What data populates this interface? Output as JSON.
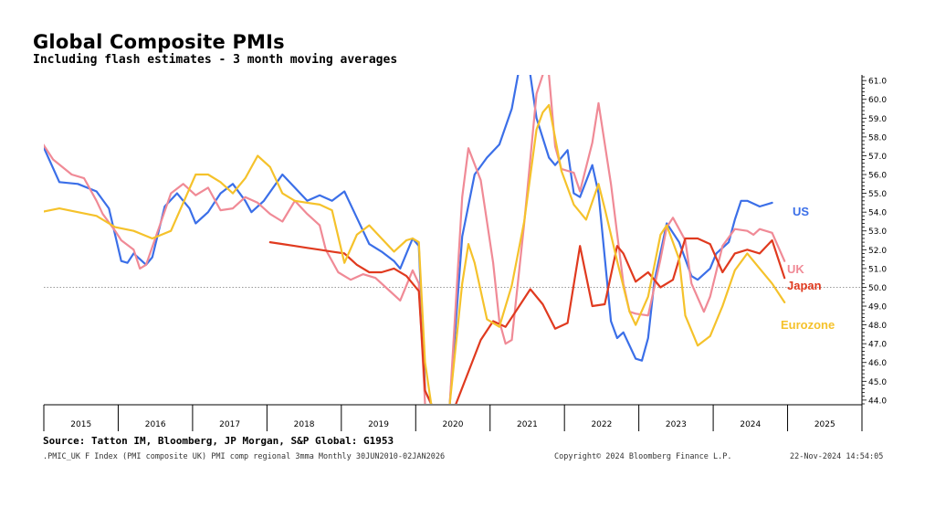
{
  "header": {
    "title": "Global Composite PMIs",
    "subtitle": "Including flash estimates - 3 month moving averages"
  },
  "footer": {
    "source": "Source: Tatton IM, Bloomberg, JP Morgan, S&P Global: G1953",
    "index_info": ".PMIC_UK F Index (PMI composite UK) PMI comp regional 3mma  Monthly 30JUN2010-02JAN2026",
    "copyright": "Copyright© 2024 Bloomberg Finance L.P.",
    "timestamp": "22-Nov-2024 14:54:05"
  },
  "chart_data": {
    "type": "line",
    "title": "Global Composite PMIs",
    "subtitle": "Including flash estimates - 3 month moving averages",
    "x_tick_labels": [
      "2015",
      "2016",
      "2017",
      "2018",
      "2019",
      "2020",
      "2021",
      "2022",
      "2023",
      "2024",
      "2025"
    ],
    "xlim": [
      "2015-01",
      "2025-12"
    ],
    "y_tick_labels": [
      "61.0",
      "60.0",
      "59.0",
      "58.0",
      "57.0",
      "56.0",
      "55.0",
      "54.0",
      "53.0",
      "52.0",
      "51.0",
      "50.0",
      "49.0",
      "48.0",
      "47.0",
      "46.0",
      "45.0",
      "44.0"
    ],
    "ylim": [
      43.8,
      61.3
    ],
    "reference_line": 50,
    "grid": "vertical year dividers only",
    "y_axis_position": "right",
    "series": [
      {
        "name": "US",
        "color": "#3b6fe8",
        "points": [
          [
            "2014-12",
            57.8
          ],
          [
            "2015-03",
            55.6
          ],
          [
            "2015-06",
            55.5
          ],
          [
            "2015-09",
            55.1
          ],
          [
            "2015-11",
            54.2
          ],
          [
            "2016-01",
            51.4
          ],
          [
            "2016-02",
            51.3
          ],
          [
            "2016-03",
            51.8
          ],
          [
            "2016-05",
            51.2
          ],
          [
            "2016-06",
            51.6
          ],
          [
            "2016-08",
            54.3
          ],
          [
            "2016-10",
            55.0
          ],
          [
            "2016-12",
            54.2
          ],
          [
            "2017-01",
            53.4
          ],
          [
            "2017-03",
            54.0
          ],
          [
            "2017-05",
            55.0
          ],
          [
            "2017-07",
            55.5
          ],
          [
            "2017-09",
            54.6
          ],
          [
            "2017-10",
            54.0
          ],
          [
            "2017-12",
            54.6
          ],
          [
            "2018-03",
            56.0
          ],
          [
            "2018-05",
            55.3
          ],
          [
            "2018-07",
            54.6
          ],
          [
            "2018-09",
            54.9
          ],
          [
            "2018-11",
            54.6
          ],
          [
            "2019-01",
            55.1
          ],
          [
            "2019-03",
            53.7
          ],
          [
            "2019-05",
            52.3
          ],
          [
            "2019-07",
            51.9
          ],
          [
            "2019-09",
            51.4
          ],
          [
            "2019-10",
            51.0
          ],
          [
            "2019-12",
            52.6
          ],
          [
            "2020-01",
            52.2
          ],
          [
            "2020-02",
            44.5
          ],
          [
            "2020-03",
            43.8
          ]
        ],
        "points_2": [
          [
            "2020-06",
            43.8
          ],
          [
            "2020-08",
            52.7
          ],
          [
            "2020-10",
            56.0
          ],
          [
            "2020-12",
            56.9
          ],
          [
            "2021-02",
            57.6
          ],
          [
            "2021-04",
            59.5
          ],
          [
            "2021-05",
            61.3
          ]
        ],
        "points_3": [
          [
            "2021-07",
            61.3
          ],
          [
            "2021-08",
            59.0
          ],
          [
            "2021-10",
            56.9
          ],
          [
            "2021-11",
            56.5
          ],
          [
            "2022-01",
            57.3
          ],
          [
            "2022-02",
            55.0
          ],
          [
            "2022-03",
            54.8
          ],
          [
            "2022-05",
            56.5
          ],
          [
            "2022-06",
            55.0
          ],
          [
            "2022-08",
            48.2
          ],
          [
            "2022-09",
            47.3
          ],
          [
            "2022-10",
            47.6
          ],
          [
            "2022-12",
            46.2
          ],
          [
            "2023-01",
            46.1
          ],
          [
            "2023-02",
            47.3
          ],
          [
            "2023-03",
            50.3
          ],
          [
            "2023-05",
            53.4
          ],
          [
            "2023-07",
            52.4
          ],
          [
            "2023-09",
            50.6
          ],
          [
            "2023-10",
            50.4
          ],
          [
            "2023-12",
            51.0
          ],
          [
            "2024-01",
            51.8
          ],
          [
            "2024-03",
            52.4
          ],
          [
            "2024-04",
            53.6
          ],
          [
            "2024-05",
            54.6
          ],
          [
            "2024-06",
            54.6
          ],
          [
            "2024-08",
            54.3
          ],
          [
            "2024-10",
            54.5
          ]
        ]
      },
      {
        "name": "UK",
        "color": "#f08a96",
        "points": [
          [
            "2014-12",
            57.8
          ],
          [
            "2015-02",
            56.8
          ],
          [
            "2015-05",
            56.0
          ],
          [
            "2015-07",
            55.8
          ],
          [
            "2015-09",
            54.6
          ],
          [
            "2015-10",
            53.9
          ],
          [
            "2015-12",
            53.0
          ],
          [
            "2016-01",
            52.5
          ],
          [
            "2016-03",
            52.0
          ],
          [
            "2016-04",
            51.0
          ],
          [
            "2016-05",
            51.2
          ],
          [
            "2016-07",
            53.1
          ],
          [
            "2016-09",
            55.0
          ],
          [
            "2016-11",
            55.5
          ],
          [
            "2017-01",
            54.9
          ],
          [
            "2017-03",
            55.3
          ],
          [
            "2017-05",
            54.1
          ],
          [
            "2017-07",
            54.2
          ],
          [
            "2017-09",
            54.8
          ],
          [
            "2017-11",
            54.5
          ],
          [
            "2018-01",
            53.9
          ],
          [
            "2018-03",
            53.5
          ],
          [
            "2018-05",
            54.6
          ],
          [
            "2018-07",
            53.9
          ],
          [
            "2018-09",
            53.3
          ],
          [
            "2018-10",
            52.0
          ],
          [
            "2018-12",
            50.8
          ],
          [
            "2019-02",
            50.4
          ],
          [
            "2019-04",
            50.7
          ],
          [
            "2019-06",
            50.5
          ],
          [
            "2019-08",
            49.9
          ],
          [
            "2019-10",
            49.3
          ],
          [
            "2019-12",
            50.9
          ],
          [
            "2020-01",
            50.2
          ],
          [
            "2020-02",
            43.8
          ]
        ],
        "points_2": [
          [
            "2020-06",
            43.8
          ],
          [
            "2020-08",
            54.8
          ],
          [
            "2020-09",
            57.4
          ],
          [
            "2020-11",
            55.7
          ],
          [
            "2021-01",
            51.3
          ],
          [
            "2021-02",
            48.2
          ],
          [
            "2021-03",
            47.0
          ],
          [
            "2021-04",
            47.2
          ],
          [
            "2021-06",
            53.4
          ],
          [
            "2021-08",
            60.3
          ],
          [
            "2021-09",
            61.3
          ]
        ],
        "points_3": [
          [
            "2021-10",
            61.3
          ],
          [
            "2021-11",
            57.5
          ],
          [
            "2021-12",
            56.3
          ],
          [
            "2022-02",
            56.1
          ],
          [
            "2022-03",
            55.1
          ],
          [
            "2022-05",
            57.7
          ],
          [
            "2022-06",
            59.8
          ],
          [
            "2022-08",
            55.5
          ],
          [
            "2022-10",
            50.2
          ],
          [
            "2022-11",
            48.7
          ],
          [
            "2022-12",
            48.6
          ],
          [
            "2023-02",
            48.5
          ],
          [
            "2023-04",
            51.5
          ],
          [
            "2023-05",
            53.2
          ],
          [
            "2023-06",
            53.7
          ],
          [
            "2023-08",
            52.5
          ],
          [
            "2023-09",
            50.2
          ],
          [
            "2023-11",
            48.7
          ],
          [
            "2023-12",
            49.5
          ],
          [
            "2024-02",
            52.2
          ],
          [
            "2024-04",
            53.1
          ],
          [
            "2024-06",
            53.0
          ],
          [
            "2024-07",
            52.8
          ],
          [
            "2024-08",
            53.1
          ],
          [
            "2024-10",
            52.9
          ],
          [
            "2024-12",
            51.4
          ]
        ]
      },
      {
        "name": "Japan",
        "color": "#e03a1f",
        "points": [
          [
            "2018-01",
            52.4
          ],
          [
            "2018-03",
            52.3
          ],
          [
            "2018-05",
            52.2
          ],
          [
            "2018-07",
            52.1
          ],
          [
            "2018-09",
            52.0
          ],
          [
            "2018-11",
            51.9
          ],
          [
            "2019-01",
            51.8
          ],
          [
            "2019-03",
            51.2
          ],
          [
            "2019-05",
            50.8
          ],
          [
            "2019-07",
            50.8
          ],
          [
            "2019-09",
            51.0
          ],
          [
            "2019-11",
            50.6
          ],
          [
            "2020-01",
            49.8
          ],
          [
            "2020-02",
            44.5
          ],
          [
            "2020-03",
            43.8
          ]
        ],
        "points_2": [
          [
            "2020-07",
            43.8
          ],
          [
            "2020-09",
            45.5
          ],
          [
            "2020-11",
            47.2
          ],
          [
            "2021-01",
            48.2
          ],
          [
            "2021-03",
            47.9
          ],
          [
            "2021-05",
            48.9
          ],
          [
            "2021-07",
            49.9
          ],
          [
            "2021-09",
            49.1
          ],
          [
            "2021-11",
            47.8
          ],
          [
            "2022-01",
            48.1
          ],
          [
            "2022-03",
            52.2
          ],
          [
            "2022-05",
            49.0
          ],
          [
            "2022-07",
            49.1
          ],
          [
            "2022-09",
            52.2
          ],
          [
            "2022-10",
            51.8
          ],
          [
            "2022-12",
            50.3
          ],
          [
            "2023-02",
            50.8
          ],
          [
            "2023-04",
            50.0
          ],
          [
            "2023-06",
            50.4
          ],
          [
            "2023-08",
            52.6
          ],
          [
            "2023-10",
            52.6
          ],
          [
            "2023-12",
            52.3
          ],
          [
            "2024-02",
            50.8
          ],
          [
            "2024-04",
            51.8
          ],
          [
            "2024-06",
            52.0
          ],
          [
            "2024-08",
            51.8
          ],
          [
            "2024-10",
            52.5
          ],
          [
            "2024-12",
            50.5
          ]
        ]
      },
      {
        "name": "Eurozone",
        "color": "#f5c22b",
        "points": [
          [
            "2014-12",
            54.0
          ],
          [
            "2015-03",
            54.2
          ],
          [
            "2015-06",
            54.0
          ],
          [
            "2015-09",
            53.8
          ],
          [
            "2015-12",
            53.2
          ],
          [
            "2016-03",
            53.0
          ],
          [
            "2016-06",
            52.6
          ],
          [
            "2016-09",
            53.0
          ],
          [
            "2016-11",
            54.5
          ],
          [
            "2017-01",
            56.0
          ],
          [
            "2017-03",
            56.0
          ],
          [
            "2017-05",
            55.6
          ],
          [
            "2017-07",
            55.0
          ],
          [
            "2017-09",
            55.8
          ],
          [
            "2017-11",
            57.0
          ],
          [
            "2018-01",
            56.4
          ],
          [
            "2018-03",
            55.0
          ],
          [
            "2018-05",
            54.6
          ],
          [
            "2018-07",
            54.5
          ],
          [
            "2018-09",
            54.4
          ],
          [
            "2018-11",
            54.1
          ],
          [
            "2019-01",
            51.3
          ],
          [
            "2019-03",
            52.8
          ],
          [
            "2019-05",
            53.3
          ],
          [
            "2019-07",
            52.6
          ],
          [
            "2019-09",
            51.9
          ],
          [
            "2019-11",
            52.5
          ],
          [
            "2019-12",
            52.6
          ],
          [
            "2020-01",
            52.4
          ],
          [
            "2020-02",
            46.0
          ],
          [
            "2020-03",
            43.8
          ]
        ],
        "points_2": [
          [
            "2020-06",
            43.8
          ],
          [
            "2020-08",
            50.2
          ],
          [
            "2020-09",
            52.3
          ],
          [
            "2020-10",
            51.3
          ],
          [
            "2020-12",
            48.3
          ],
          [
            "2021-02",
            47.9
          ],
          [
            "2021-04",
            50.1
          ],
          [
            "2021-06",
            53.5
          ],
          [
            "2021-08",
            58.4
          ],
          [
            "2021-09",
            59.3
          ],
          [
            "2021-10",
            59.7
          ],
          [
            "2021-12",
            56.2
          ],
          [
            "2022-02",
            54.4
          ],
          [
            "2022-04",
            53.6
          ],
          [
            "2022-06",
            55.5
          ],
          [
            "2022-07",
            54.2
          ],
          [
            "2022-09",
            51.4
          ],
          [
            "2022-11",
            48.7
          ],
          [
            "2022-12",
            48.0
          ],
          [
            "2023-02",
            49.5
          ],
          [
            "2023-04",
            52.8
          ],
          [
            "2023-05",
            53.3
          ],
          [
            "2023-07",
            51.5
          ],
          [
            "2023-08",
            48.5
          ],
          [
            "2023-10",
            46.9
          ],
          [
            "2023-12",
            47.4
          ],
          [
            "2024-02",
            49.0
          ],
          [
            "2024-04",
            50.9
          ],
          [
            "2024-06",
            51.8
          ],
          [
            "2024-08",
            51.0
          ],
          [
            "2024-10",
            50.2
          ],
          [
            "2024-12",
            49.2
          ]
        ]
      }
    ]
  }
}
